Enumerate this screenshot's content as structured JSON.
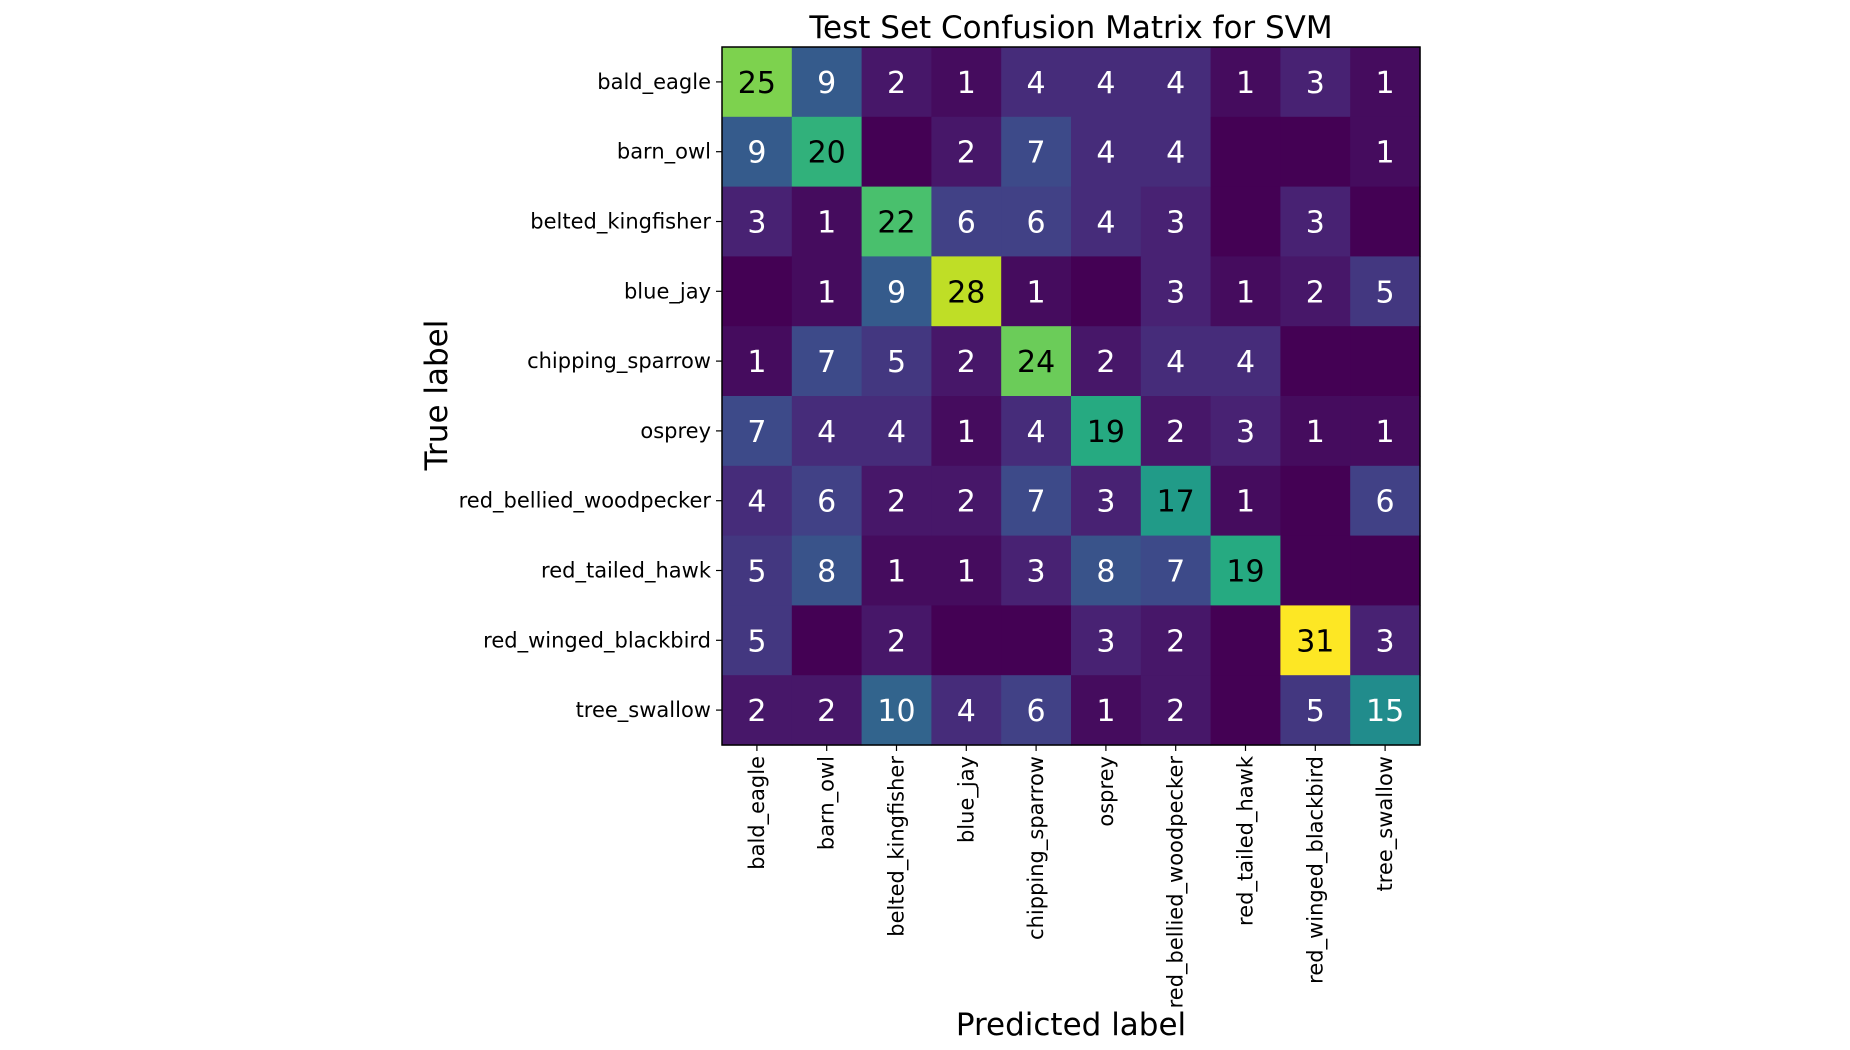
{
  "chart_data": {
    "type": "heatmap",
    "title": "Test Set Confusion Matrix for SVM",
    "xlabel": "Predicted label",
    "ylabel": "True label",
    "colormap": "viridis",
    "value_range": [
      0,
      31
    ],
    "x_categories": [
      "bald_eagle",
      "barn_owl",
      "belted_kingfisher",
      "blue_jay",
      "chipping_sparrow",
      "osprey",
      "red_bellied_woodpecker",
      "red_tailed_hawk",
      "red_winged_blackbird",
      "tree_swallow"
    ],
    "y_categories": [
      "bald_eagle",
      "barn_owl",
      "belted_kingfisher",
      "blue_jay",
      "chipping_sparrow",
      "osprey",
      "red_bellied_woodpecker",
      "red_tailed_hawk",
      "red_winged_blackbird",
      "tree_swallow"
    ],
    "values": [
      [
        25,
        9,
        2,
        1,
        4,
        4,
        4,
        1,
        3,
        1
      ],
      [
        9,
        20,
        0,
        2,
        7,
        4,
        4,
        0,
        0,
        1
      ],
      [
        3,
        1,
        22,
        6,
        6,
        4,
        3,
        0,
        3,
        0
      ],
      [
        0,
        1,
        9,
        28,
        1,
        0,
        3,
        1,
        2,
        5
      ],
      [
        1,
        7,
        5,
        2,
        24,
        2,
        4,
        4,
        0,
        0
      ],
      [
        7,
        4,
        4,
        1,
        4,
        19,
        2,
        3,
        1,
        1
      ],
      [
        4,
        6,
        2,
        2,
        7,
        3,
        17,
        1,
        0,
        6
      ],
      [
        5,
        8,
        1,
        1,
        3,
        8,
        7,
        19,
        0,
        0
      ],
      [
        5,
        0,
        2,
        0,
        0,
        3,
        2,
        0,
        31,
        3
      ],
      [
        2,
        2,
        10,
        4,
        6,
        1,
        2,
        0,
        5,
        15
      ]
    ],
    "labels": [
      [
        "25",
        "9",
        "2",
        "1",
        "4",
        "4",
        "4",
        "1",
        "3",
        "1"
      ],
      [
        "9",
        "20",
        "",
        "2",
        "7",
        "4",
        "4",
        "",
        "",
        "1"
      ],
      [
        "3",
        "1",
        "22",
        "6",
        "6",
        "4",
        "3",
        "",
        "3",
        ""
      ],
      [
        "",
        "1",
        "9",
        "28",
        "1",
        "",
        "3",
        "1",
        "2",
        "5"
      ],
      [
        "1",
        "7",
        "5",
        "2",
        "24",
        "2",
        "4",
        "4",
        "",
        ""
      ],
      [
        "7",
        "4",
        "4",
        "1",
        "4",
        "19",
        "2",
        "3",
        "1",
        "1"
      ],
      [
        "4",
        "6",
        "2",
        "2",
        "7",
        "3",
        "17",
        "1",
        "",
        "6"
      ],
      [
        "5",
        "8",
        "1",
        "1",
        "3",
        "8",
        "7",
        "19",
        "",
        ""
      ],
      [
        "5",
        "",
        "2",
        "",
        "",
        "3",
        "2",
        "",
        "31",
        "3"
      ],
      [
        "2",
        "2",
        "10",
        "4",
        "6",
        "1",
        "2",
        "",
        "5",
        "15"
      ]
    ],
    "text_colors": {
      "dark": "#000000",
      "light": "#ffffff"
    },
    "frame_color": "#000000"
  }
}
